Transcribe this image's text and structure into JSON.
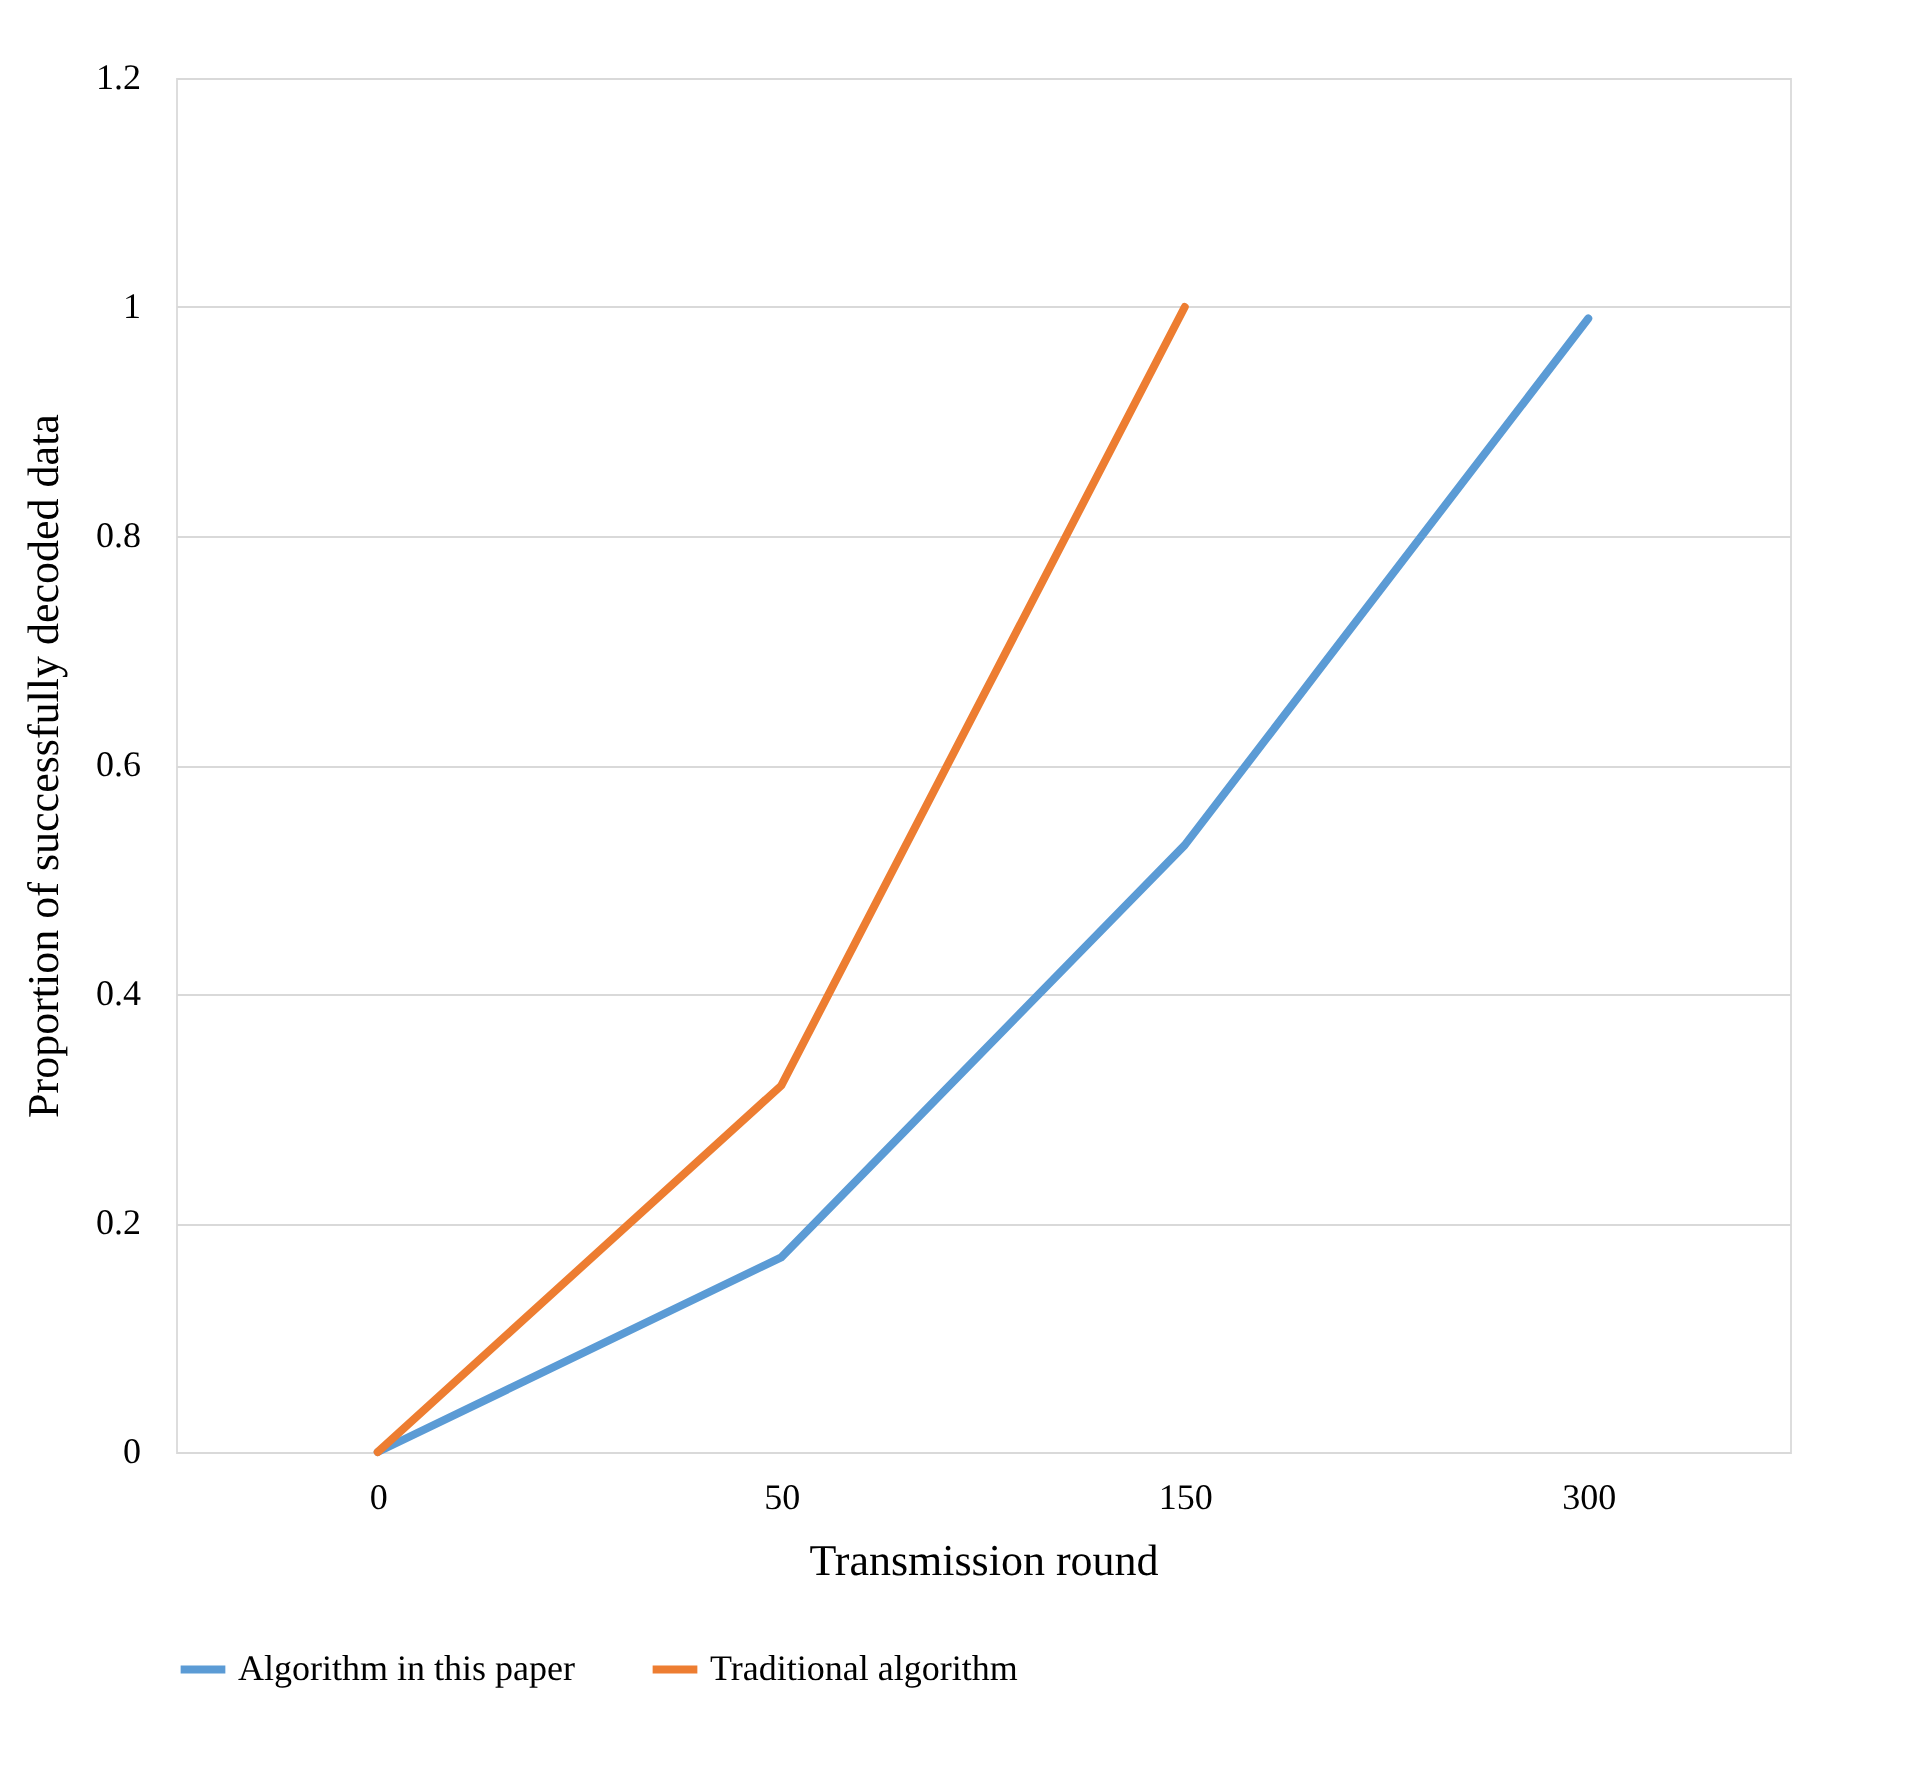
{
  "chart_data": {
    "type": "line",
    "xlabel": "Transmission round",
    "ylabel": "Proportion of successfully decoded data",
    "categories": [
      "0",
      "50",
      "150",
      "300"
    ],
    "series": [
      {
        "name": "Algorithm in this paper",
        "color": "#5b9bd5",
        "values": [
          0,
          0.17,
          0.53,
          0.99
        ]
      },
      {
        "name": "Traditional algorithm",
        "color": "#ed7d31",
        "values": [
          0,
          0.32,
          1.0,
          null
        ]
      }
    ],
    "ylim": [
      0,
      1.2
    ],
    "yticks": [
      0,
      0.2,
      0.4,
      0.6,
      0.8,
      1,
      1.2
    ],
    "grid": "y",
    "legend": "bottom",
    "marker": "none",
    "line_style": "solid"
  }
}
